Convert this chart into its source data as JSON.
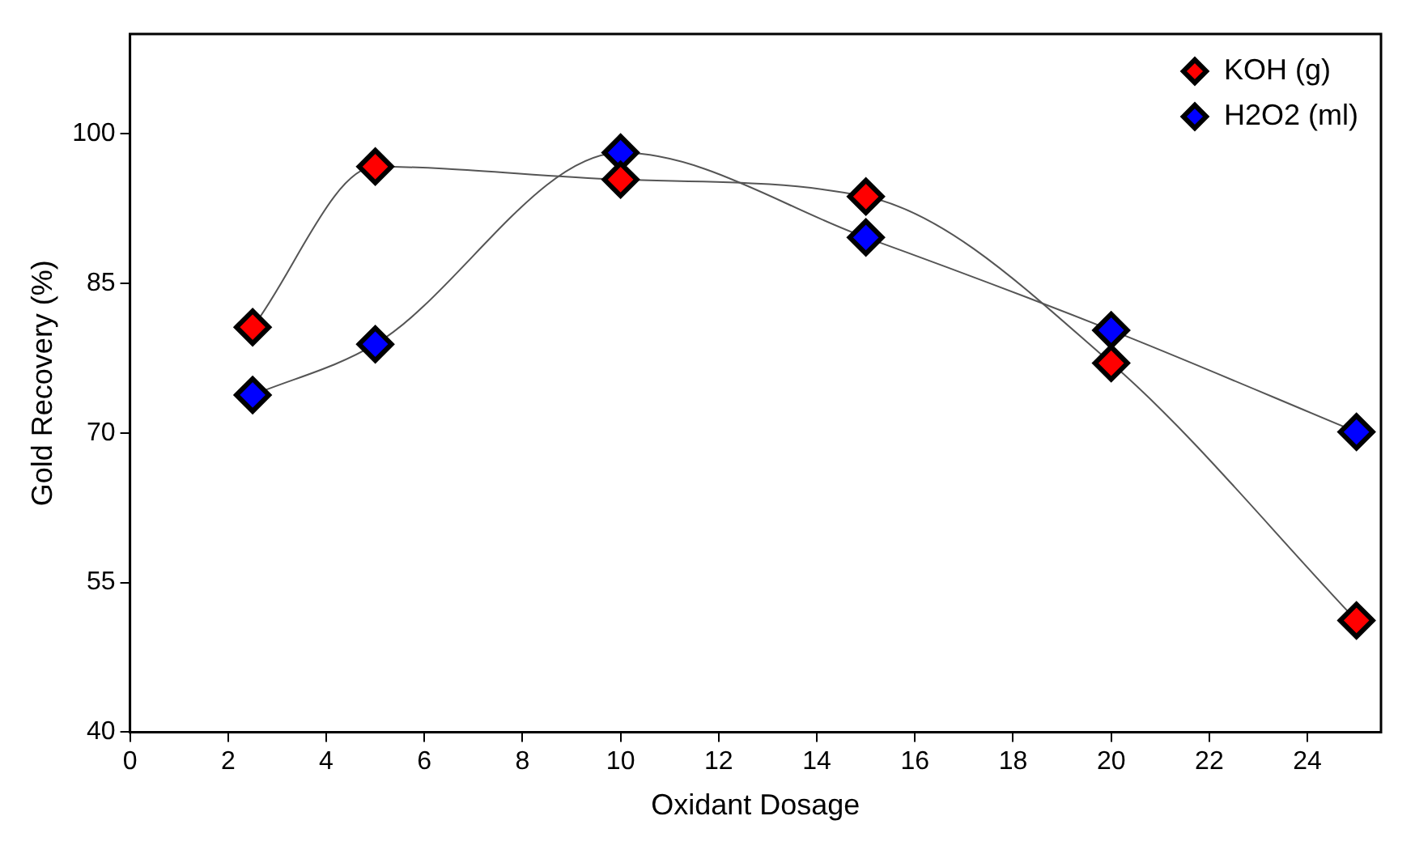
{
  "chart_data": {
    "type": "line",
    "xlabel": "Oxidant Dosage",
    "ylabel": "Gold Recovery (%)",
    "x": [
      2.5,
      5,
      10,
      15,
      20,
      25
    ],
    "series": [
      {
        "name": "KOH (g)",
        "color": "#ff0000",
        "values": [
          80.6,
          96.7,
          95.4,
          93.7,
          77.0,
          51.2
        ]
      },
      {
        "name": "H2O2 (ml)",
        "color": "#0000ff",
        "values": [
          73.8,
          78.9,
          98.1,
          89.6,
          80.3,
          70.1
        ]
      }
    ],
    "xlim": [
      0,
      25.5
    ],
    "xticks": [
      0,
      2,
      4,
      6,
      8,
      10,
      12,
      14,
      16,
      18,
      20,
      22,
      24
    ],
    "ylim": [
      40,
      110
    ],
    "yticks": [
      40,
      55,
      70,
      85,
      100
    ],
    "grid": false,
    "legend": "top right",
    "marker": "diamond",
    "line_style": "solid"
  }
}
